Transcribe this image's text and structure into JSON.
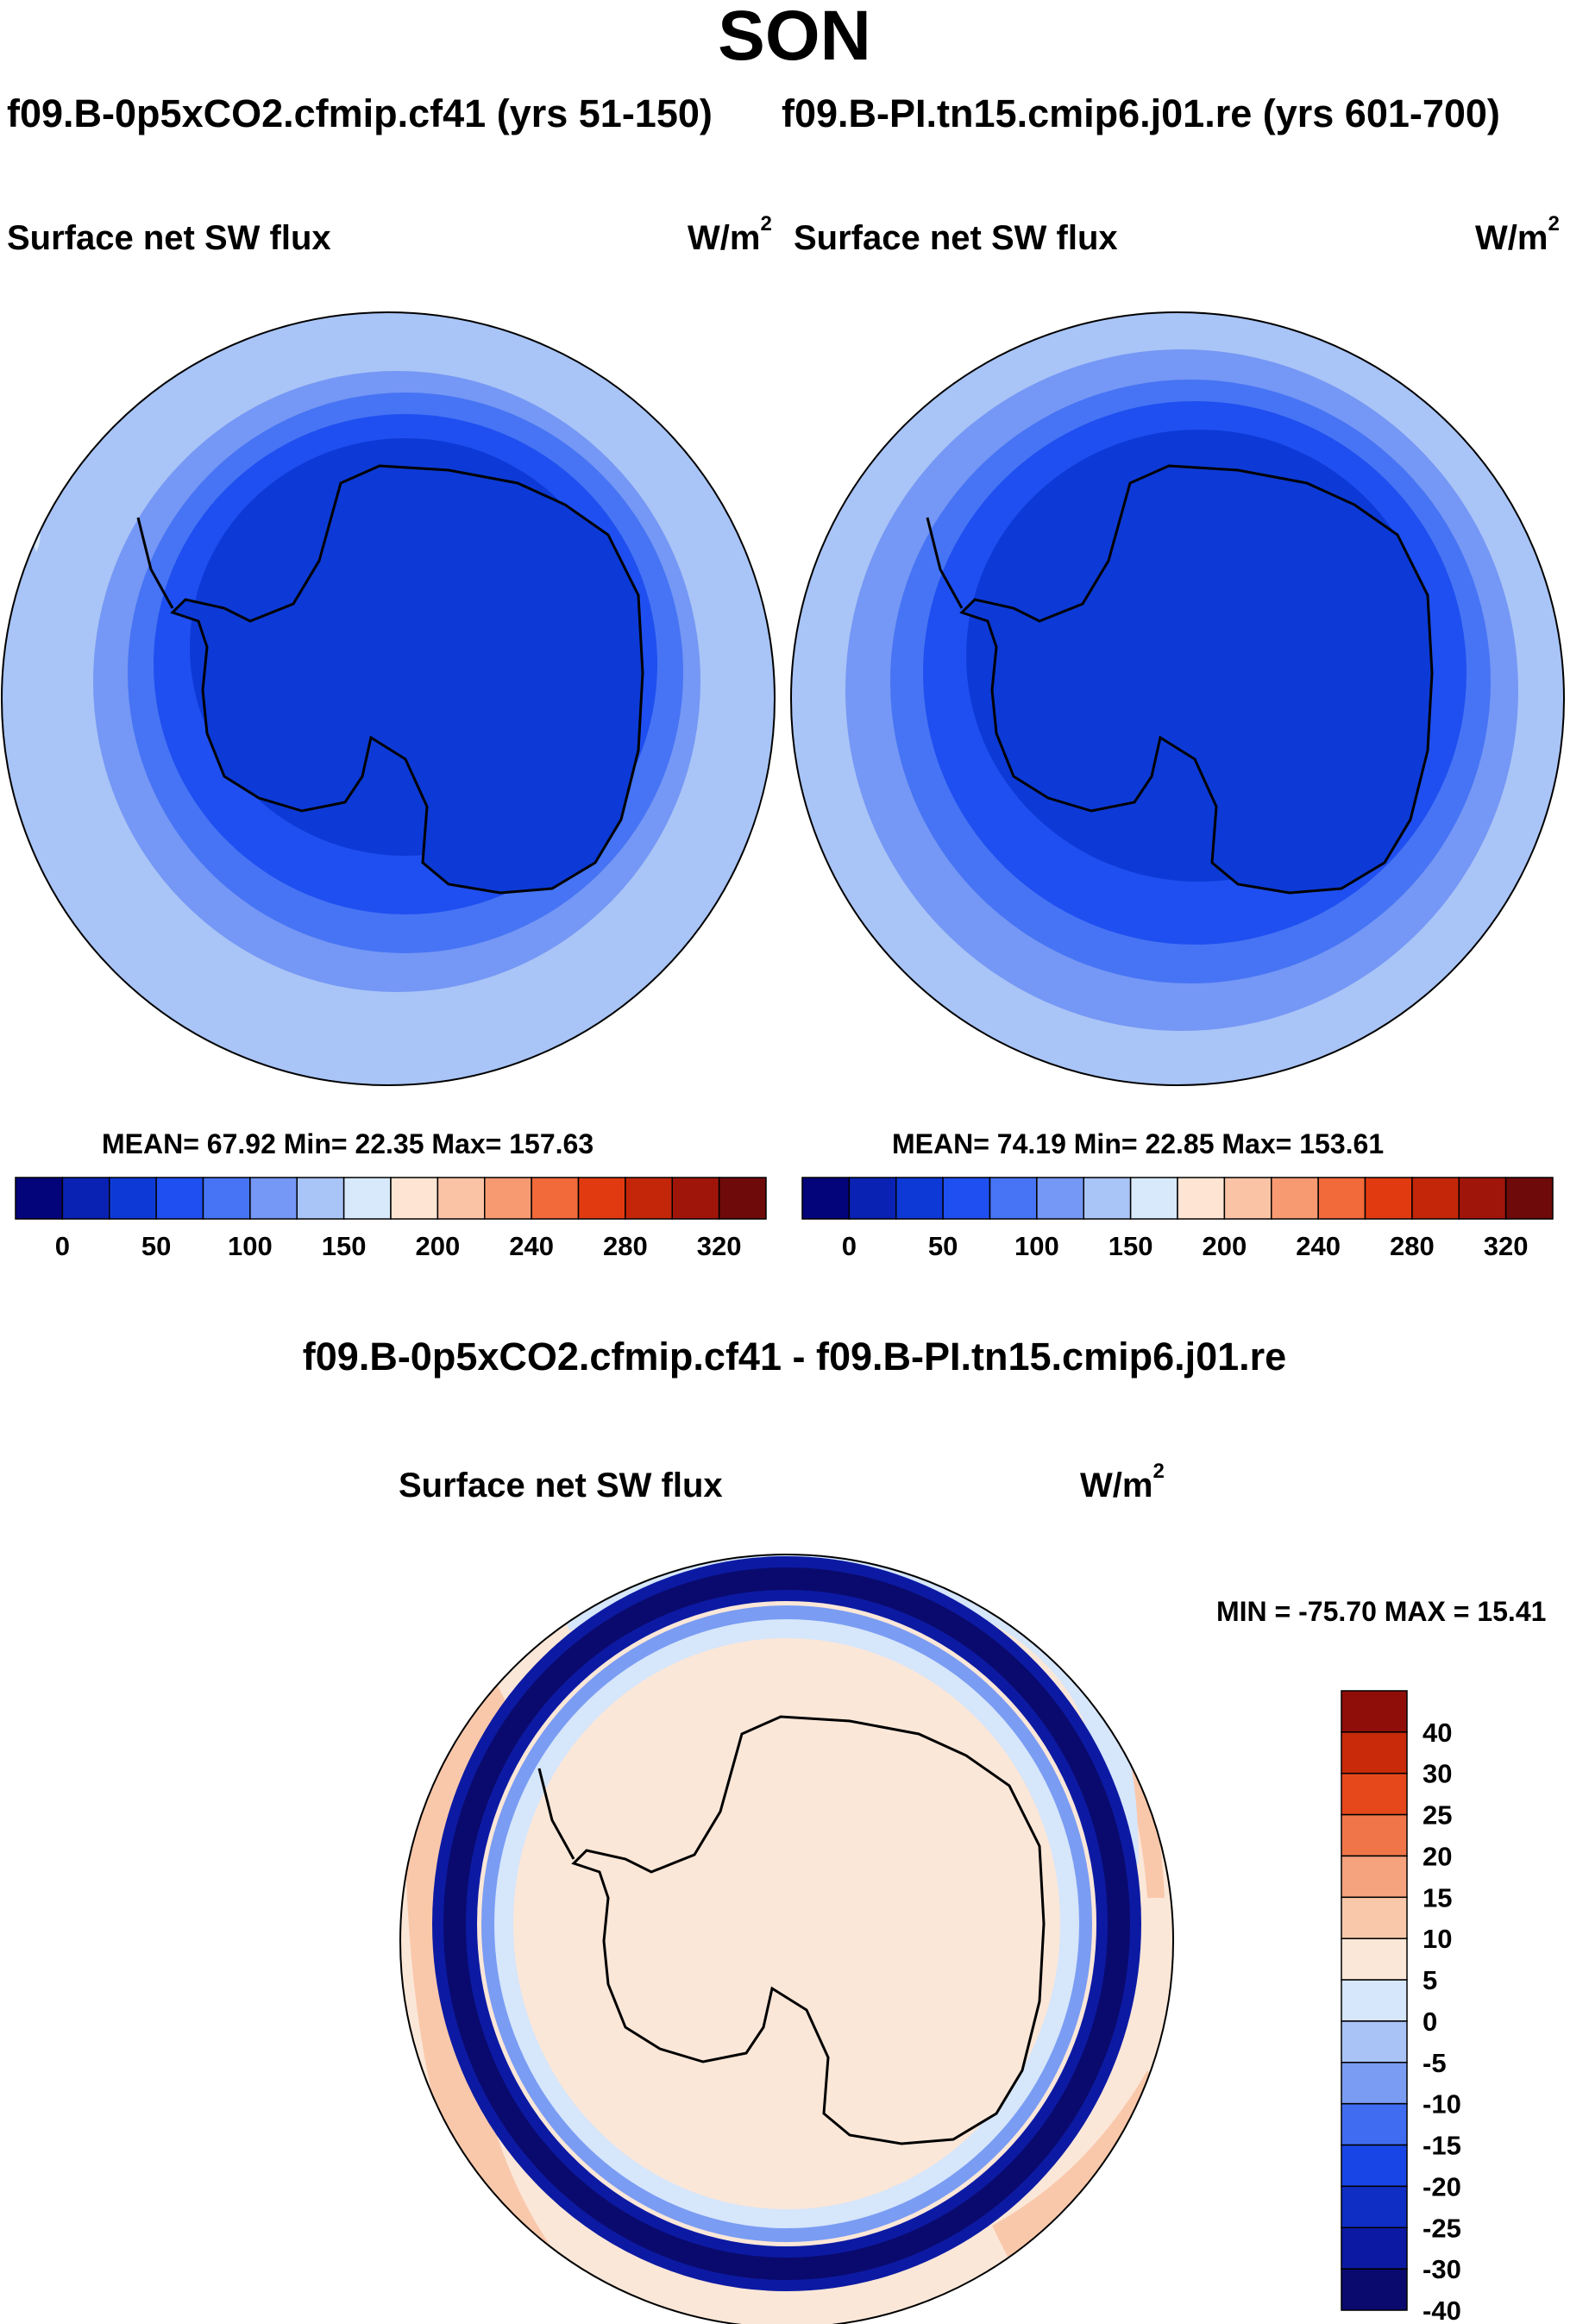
{
  "page": {
    "title": "SON",
    "case_left": "f09.B-0p5xCO2.cfmip.cf41 (yrs 51-150)",
    "case_right": "f09.B-PI.tn15.cmip6.j01.re (yrs 601-700)",
    "diff_title": "f09.B-0p5xCO2.cfmip.cf41 - f09.B-PI.tn15.cmip6.j01.re"
  },
  "panels": [
    {
      "variable": "Surface net SW flux",
      "units": "W/m",
      "units_exp": "2",
      "stats": "MEAN=  67.92  Min=  22.35  Max= 157.63"
    },
    {
      "variable": "Surface net SW flux",
      "units": "W/m",
      "units_exp": "2",
      "stats": "MEAN=  74.19  Min=  22.85  Max= 153.61"
    },
    {
      "variable": "Surface net SW flux",
      "units": "W/m",
      "units_exp": "2",
      "stats": "MIN = -75.70 MAX =  15.41"
    }
  ],
  "colors": {
    "abs_palette": [
      "#03037a",
      "#0a22b3",
      "#0d3ad6",
      "#1f4ff0",
      "#4674f4",
      "#7597f5",
      "#a9c4f6",
      "#d7e9fb",
      "#fde4d3",
      "#fbc3a6",
      "#f79a72",
      "#f26a3a",
      "#e23a10",
      "#c32608",
      "#a0150a",
      "#6e0a0a"
    ],
    "diff_palette": [
      "#0a0a6e",
      "#0c1aa3",
      "#0e2ec4",
      "#1846e6",
      "#3f6cf0",
      "#7a9cf3",
      "#a9c3f6",
      "#d6e6fb",
      "#fbe7d8",
      "#f9c8ab",
      "#f5a27e",
      "#f07649",
      "#e6481c",
      "#c82a0a",
      "#8f0e0a"
    ]
  },
  "chart_data": [
    {
      "type": "heatmap",
      "projection": "south-polar-stereographic",
      "title": "Surface net SW flux",
      "units": "W/m2",
      "case": "f09.B-0p5xCO2.cfmip.cf41 (yrs 51-150)",
      "stats": {
        "mean": 67.92,
        "min": 22.35,
        "max": 157.63
      },
      "colorbar_ticks": [
        "0",
        "50",
        "100",
        "150",
        "200",
        "240",
        "280",
        "320"
      ],
      "contour_levels": [
        0,
        25,
        50,
        75,
        100,
        125,
        150,
        175,
        200,
        220,
        240,
        260,
        280,
        300,
        320
      ]
    },
    {
      "type": "heatmap",
      "projection": "south-polar-stereographic",
      "title": "Surface net SW flux",
      "units": "W/m2",
      "case": "f09.B-PI.tn15.cmip6.j01.re (yrs 601-700)",
      "stats": {
        "mean": 74.19,
        "min": 22.85,
        "max": 153.61
      },
      "colorbar_ticks": [
        "0",
        "50",
        "100",
        "150",
        "200",
        "240",
        "280",
        "320"
      ],
      "contour_levels": [
        0,
        25,
        50,
        75,
        100,
        125,
        150,
        175,
        200,
        220,
        240,
        260,
        280,
        300,
        320
      ]
    },
    {
      "type": "heatmap",
      "projection": "south-polar-stereographic",
      "title": "Surface net SW flux",
      "units": "W/m2",
      "case": "f09.B-0p5xCO2.cfmip.cf41 - f09.B-PI.tn15.cmip6.j01.re",
      "stats": {
        "min": -75.7,
        "max": 15.41
      },
      "colorbar_ticks": [
        "40",
        "30",
        "25",
        "20",
        "15",
        "10",
        "5",
        "0",
        "-5",
        "-10",
        "-15",
        "-20",
        "-25",
        "-30",
        "-40"
      ],
      "contour_levels": [
        -40,
        -30,
        -25,
        -20,
        -15,
        -10,
        -5,
        0,
        5,
        10,
        15,
        20,
        25,
        30,
        40
      ]
    }
  ]
}
